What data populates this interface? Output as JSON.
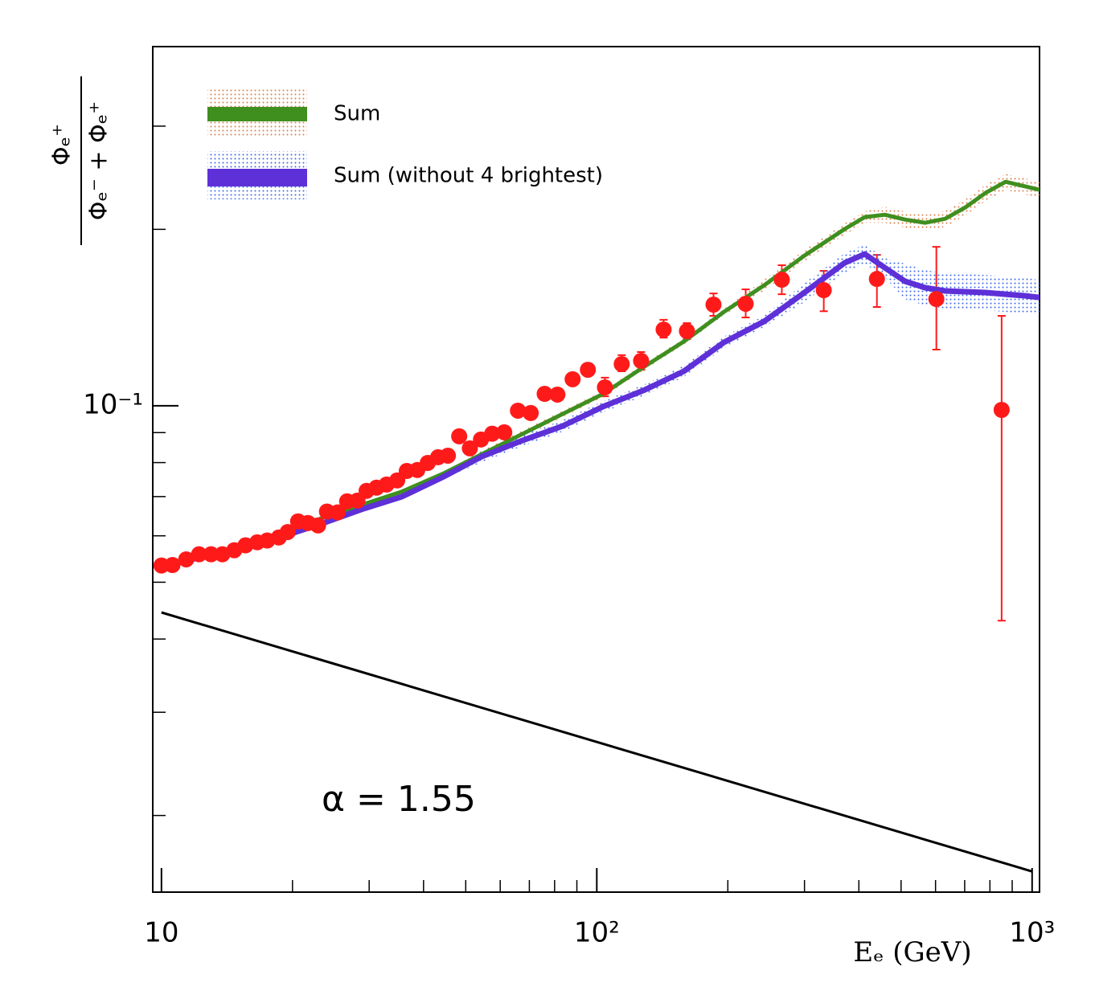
{
  "chart_data": {
    "type": "line",
    "xlabel": "Eₑ (GeV)",
    "ylabel": {
      "numerator": "Φₑ⁺",
      "denominator": "Φₑ⁻ + Φₑ⁺"
    },
    "annotation": "α = 1.55",
    "xlog": true,
    "ylog": true,
    "xlim": [
      9.55,
      1040
    ],
    "ylim": [
      0.0148,
      0.41
    ],
    "xticks": [
      10,
      {
        "value": 100,
        "label": "10²"
      },
      {
        "value": 1000,
        "label": "10³"
      }
    ],
    "xminor_ticks": [
      20,
      30,
      40,
      50,
      60,
      70,
      80,
      90,
      200,
      300,
      400,
      500,
      600,
      700,
      800,
      900
    ],
    "yticks": [
      {
        "value": 0.1,
        "label": "10⁻¹"
      }
    ],
    "yminor_ticks": [
      0.02,
      0.03,
      0.04,
      0.05,
      0.06,
      0.07,
      0.08,
      0.09,
      0.2,
      0.3
    ],
    "x": [
      10,
      12.3,
      15.2,
      18.9,
      23.3,
      28.9,
      35.7,
      44.2,
      54.6,
      67.6,
      83.6,
      103.5,
      128.0,
      158.4,
      195.9,
      242.4,
      299.9,
      371.0,
      412.6,
      458.9,
      510.6,
      567.8,
      631.6,
      702.5,
      781.3,
      869.0,
      966.5,
      1040
    ],
    "series": [
      {
        "name": "Sum",
        "color": "#3f8f1f",
        "band_color": "#d9804a",
        "values": [
          0.0535,
          0.0554,
          0.0576,
          0.0604,
          0.0643,
          0.0678,
          0.0714,
          0.0765,
          0.0828,
          0.0896,
          0.0969,
          0.1048,
          0.1164,
          0.1287,
          0.1446,
          0.1605,
          0.1804,
          0.2002,
          0.2099,
          0.2118,
          0.2078,
          0.2052,
          0.2085,
          0.218,
          0.2307,
          0.2411,
          0.2366,
          0.2336
        ],
        "band_low": [
          0.0532,
          0.0551,
          0.0572,
          0.06,
          0.0639,
          0.0674,
          0.071,
          0.076,
          0.0818,
          0.0885,
          0.0957,
          0.1035,
          0.1149,
          0.1271,
          0.1428,
          0.157,
          0.1765,
          0.1958,
          0.2053,
          0.2052,
          0.2014,
          0.1988,
          0.202,
          0.2112,
          0.2235,
          0.2336,
          0.2293,
          0.2264
        ],
        "band_high": [
          0.0538,
          0.0557,
          0.058,
          0.0608,
          0.0647,
          0.0682,
          0.0718,
          0.077,
          0.0839,
          0.0907,
          0.0981,
          0.1061,
          0.1179,
          0.1303,
          0.1464,
          0.1641,
          0.1844,
          0.2047,
          0.2146,
          0.2186,
          0.2144,
          0.2118,
          0.2152,
          0.225,
          0.2381,
          0.2488,
          0.2442,
          0.2411
        ]
      },
      {
        "name": "Sum (without 4 brightest)",
        "color": "#5e30d8",
        "band_color": "#3d6ae8",
        "values": [
          0.0535,
          0.0551,
          0.0568,
          0.0598,
          0.0629,
          0.0666,
          0.07,
          0.0755,
          0.082,
          0.0873,
          0.0924,
          0.0997,
          0.1062,
          0.1145,
          0.1283,
          0.1393,
          0.156,
          0.1753,
          0.1815,
          0.172,
          0.1631,
          0.159,
          0.157,
          0.1565,
          0.156,
          0.155,
          0.154,
          0.153
        ],
        "band_low": [
          0.053,
          0.0546,
          0.0563,
          0.0592,
          0.0623,
          0.066,
          0.0693,
          0.0748,
          0.0802,
          0.0854,
          0.0904,
          0.0975,
          0.1039,
          0.112,
          0.1255,
          0.1363,
          0.1502,
          0.1688,
          0.1748,
          0.1656,
          0.1521,
          0.1483,
          0.1465,
          0.146,
          0.1455,
          0.1446,
          0.1437,
          0.1427
        ],
        "band_high": [
          0.054,
          0.0556,
          0.0573,
          0.0604,
          0.0635,
          0.0672,
          0.0707,
          0.0762,
          0.0838,
          0.0892,
          0.0945,
          0.1019,
          0.1086,
          0.1171,
          0.1312,
          0.1424,
          0.162,
          0.1821,
          0.1885,
          0.1786,
          0.1748,
          0.1704,
          0.1683,
          0.1678,
          0.1672,
          0.1662,
          0.1651,
          0.164
        ]
      }
    ],
    "points": {
      "color": "#ff1a1a",
      "x": [
        10.0,
        10.6,
        11.4,
        12.2,
        13.0,
        13.8,
        14.7,
        15.6,
        16.6,
        17.5,
        18.6,
        19.5,
        20.6,
        21.7,
        22.9,
        24.0,
        25.4,
        26.7,
        28.2,
        29.6,
        31.2,
        32.9,
        34.8,
        36.6,
        38.7,
        40.9,
        43.2,
        45.5,
        48.3,
        51.1,
        54.2,
        57.5,
        61.3,
        65.9,
        70.5,
        75.9,
        81.2,
        88.0,
        95.4,
        104.4,
        114.1,
        126.4,
        142.4,
        161.1,
        185.4,
        219.8,
        266.1,
        332.2,
        440.0,
        602.6,
        851.1
      ],
      "y": [
        0.0534,
        0.0535,
        0.0547,
        0.0558,
        0.0558,
        0.0558,
        0.0567,
        0.0578,
        0.0585,
        0.0589,
        0.0596,
        0.0609,
        0.0635,
        0.0631,
        0.0625,
        0.066,
        0.0658,
        0.0687,
        0.0689,
        0.0716,
        0.0725,
        0.0734,
        0.0746,
        0.0774,
        0.0777,
        0.0799,
        0.0817,
        0.0822,
        0.0887,
        0.0846,
        0.0876,
        0.0896,
        0.0901,
        0.0981,
        0.0972,
        0.1048,
        0.1045,
        0.111,
        0.1152,
        0.1075,
        0.1178,
        0.1193,
        0.1349,
        0.1341,
        0.1488,
        0.1493,
        0.1641,
        0.1575,
        0.1646,
        0.1521,
        0.0984
      ],
      "err_low": [
        null,
        null,
        null,
        null,
        null,
        null,
        null,
        null,
        null,
        null,
        null,
        null,
        null,
        null,
        null,
        null,
        null,
        null,
        null,
        null,
        null,
        null,
        null,
        null,
        null,
        null,
        null,
        null,
        null,
        null,
        null,
        null,
        null,
        null,
        null,
        null,
        null,
        null,
        null,
        0.1038,
        0.1145,
        0.1152,
        0.1307,
        0.1299,
        0.1424,
        0.1415,
        0.155,
        0.145,
        0.1474,
        0.1247,
        0.043
      ],
      "err_high": [
        null,
        null,
        null,
        null,
        null,
        null,
        null,
        null,
        null,
        null,
        null,
        null,
        null,
        null,
        null,
        null,
        null,
        null,
        null,
        null,
        null,
        null,
        null,
        null,
        null,
        null,
        null,
        null,
        null,
        null,
        null,
        null,
        null,
        null,
        null,
        null,
        null,
        null,
        null,
        0.1117,
        0.122,
        0.1235,
        0.1402,
        0.1384,
        0.1555,
        0.158,
        0.1737,
        0.1699,
        0.1809,
        0.1867,
        0.1424
      ]
    },
    "reference_line": {
      "color": "#000000",
      "x": [
        10,
        1000
      ],
      "values": [
        0.0444,
        0.01605
      ]
    }
  }
}
